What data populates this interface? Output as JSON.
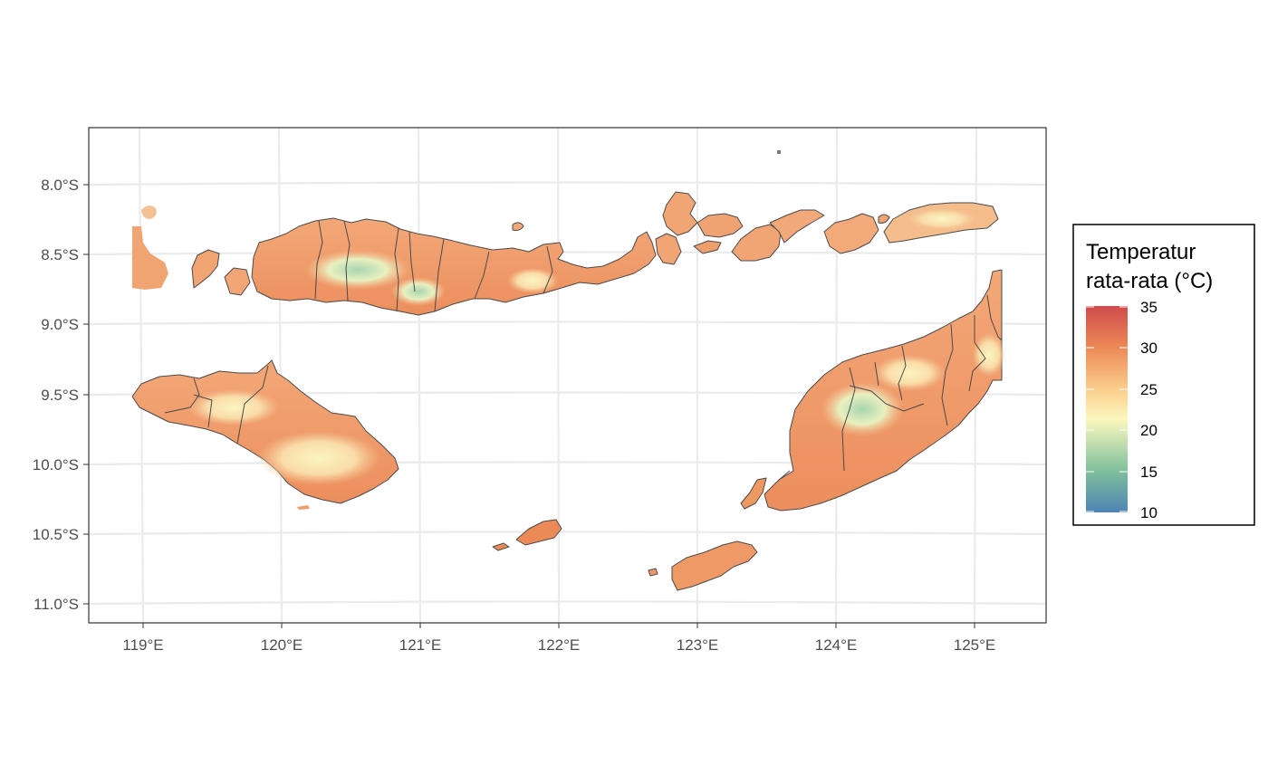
{
  "chart_data": {
    "type": "heatmap",
    "title": "",
    "xlabel": "",
    "ylabel": "",
    "x_ticks": [
      "119°E",
      "120°E",
      "121°E",
      "122°E",
      "123°E",
      "124°E",
      "125°E"
    ],
    "y_ticks": [
      "8.0°S",
      "8.5°S",
      "9.0°S",
      "9.5°S",
      "10.0°S",
      "10.5°S",
      "11.0°S"
    ],
    "xlim": [
      118.6,
      125.5
    ],
    "ylim": [
      -11.13,
      -7.6
    ],
    "grid": true,
    "legend": {
      "title_line1": "Temperatur",
      "title_line2": "rata-rata (°C)",
      "placement": "right",
      "scale_min": 10,
      "scale_max": 35,
      "breaks": [
        "35",
        "30",
        "25",
        "20",
        "15",
        "10"
      ],
      "palette": [
        "#4e84b5",
        "#7fbf9b",
        "#fbf8be",
        "#fbcd8c",
        "#ec8956",
        "#cf4a4c"
      ]
    },
    "value_summary": {
      "lowland_typical": "26–30",
      "highland_min": "about 17"
    },
    "colors": {
      "grid": "#ebebeb",
      "panel_border": "#333333",
      "boundary": "#4a4a4a"
    }
  }
}
